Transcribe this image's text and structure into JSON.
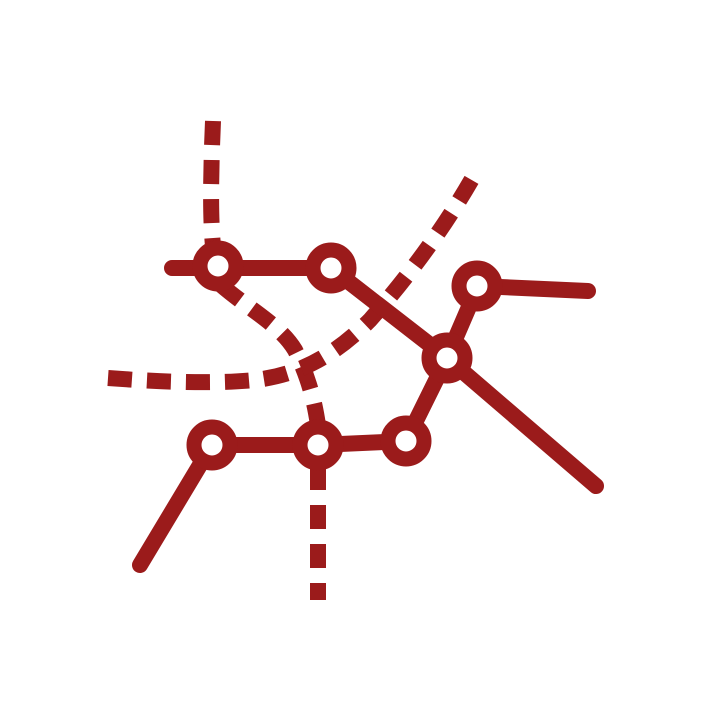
{
  "icon": {
    "name": "transit-map-icon",
    "colors": {
      "stroke": "#9b1b1b",
      "station_fill": "#ffffff",
      "background": "#ffffff"
    }
  }
}
